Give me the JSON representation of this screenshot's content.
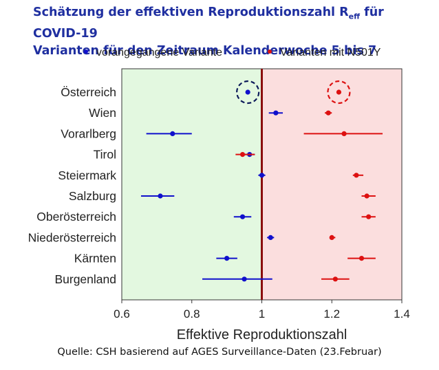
{
  "title_line1": "Schätzung der effektiven Reproduktionszahl R",
  "title_sub": "eff",
  "title_line1_end": " für COVID-19",
  "title_line2": "Varianten für den Zeitraum Kalenderwoche 5 bis 7",
  "source": "Quelle: CSH basierend auf AGES Surveillance-Daten (23.Februar)",
  "colors": {
    "prev": "#1010cc",
    "n501y": "#dd1111",
    "green_bg": "#e3f8e0",
    "red_bg": "#fbdede",
    "ref_line": "#8b0d0d"
  },
  "chart_data": {
    "type": "scatter",
    "xlabel": "Effektive Reproduktionszahl",
    "xlim": [
      0.6,
      1.4
    ],
    "xticks": [
      0.6,
      0.8,
      1,
      1.2,
      1.4
    ],
    "xtick_labels": [
      "0.6",
      "0.8",
      "1",
      "1.2",
      "1.4"
    ],
    "reference_line": 1.0,
    "categories": [
      "Österreich",
      "Wien",
      "Vorarlberg",
      "Tirol",
      "Steiermark",
      "Salzburg",
      "Oberösterreich",
      "Niederösterreich",
      "Kärnten",
      "Burgenland"
    ],
    "series": [
      {
        "name": "vorangegangene Variante",
        "color": "#1010cc",
        "points": [
          {
            "y": 0.96,
            "lo": 0.96,
            "hi": 0.96
          },
          {
            "y": 1.04,
            "lo": 1.02,
            "hi": 1.06
          },
          {
            "y": 0.745,
            "lo": 0.67,
            "hi": 0.8
          },
          {
            "y": 0.965,
            "lo": 0.95,
            "hi": 0.98
          },
          {
            "y": 1.0,
            "lo": 0.99,
            "hi": 1.01
          },
          {
            "y": 0.71,
            "lo": 0.655,
            "hi": 0.75
          },
          {
            "y": 0.945,
            "lo": 0.92,
            "hi": 0.97
          },
          {
            "y": 1.025,
            "lo": 1.015,
            "hi": 1.035
          },
          {
            "y": 0.9,
            "lo": 0.87,
            "hi": 0.93
          },
          {
            "y": 0.95,
            "lo": 0.83,
            "hi": 1.03
          }
        ]
      },
      {
        "name": "Varianten mit N501Y",
        "color": "#dd1111",
        "points": [
          {
            "y": 1.22,
            "lo": 1.22,
            "hi": 1.22
          },
          {
            "y": 1.19,
            "lo": 1.18,
            "hi": 1.2
          },
          {
            "y": 1.235,
            "lo": 1.12,
            "hi": 1.345
          },
          {
            "y": 0.945,
            "lo": 0.925,
            "hi": 0.98
          },
          {
            "y": 1.27,
            "lo": 1.26,
            "hi": 1.29
          },
          {
            "y": 1.3,
            "lo": 1.285,
            "hi": 1.325
          },
          {
            "y": 1.305,
            "lo": 1.285,
            "hi": 1.325
          },
          {
            "y": 1.2,
            "lo": 1.195,
            "hi": 1.21
          },
          {
            "y": 1.285,
            "lo": 1.245,
            "hi": 1.325
          },
          {
            "y": 1.21,
            "lo": 1.17,
            "hi": 1.25
          }
        ]
      }
    ],
    "highlight_circles": [
      "Österreich"
    ]
  }
}
